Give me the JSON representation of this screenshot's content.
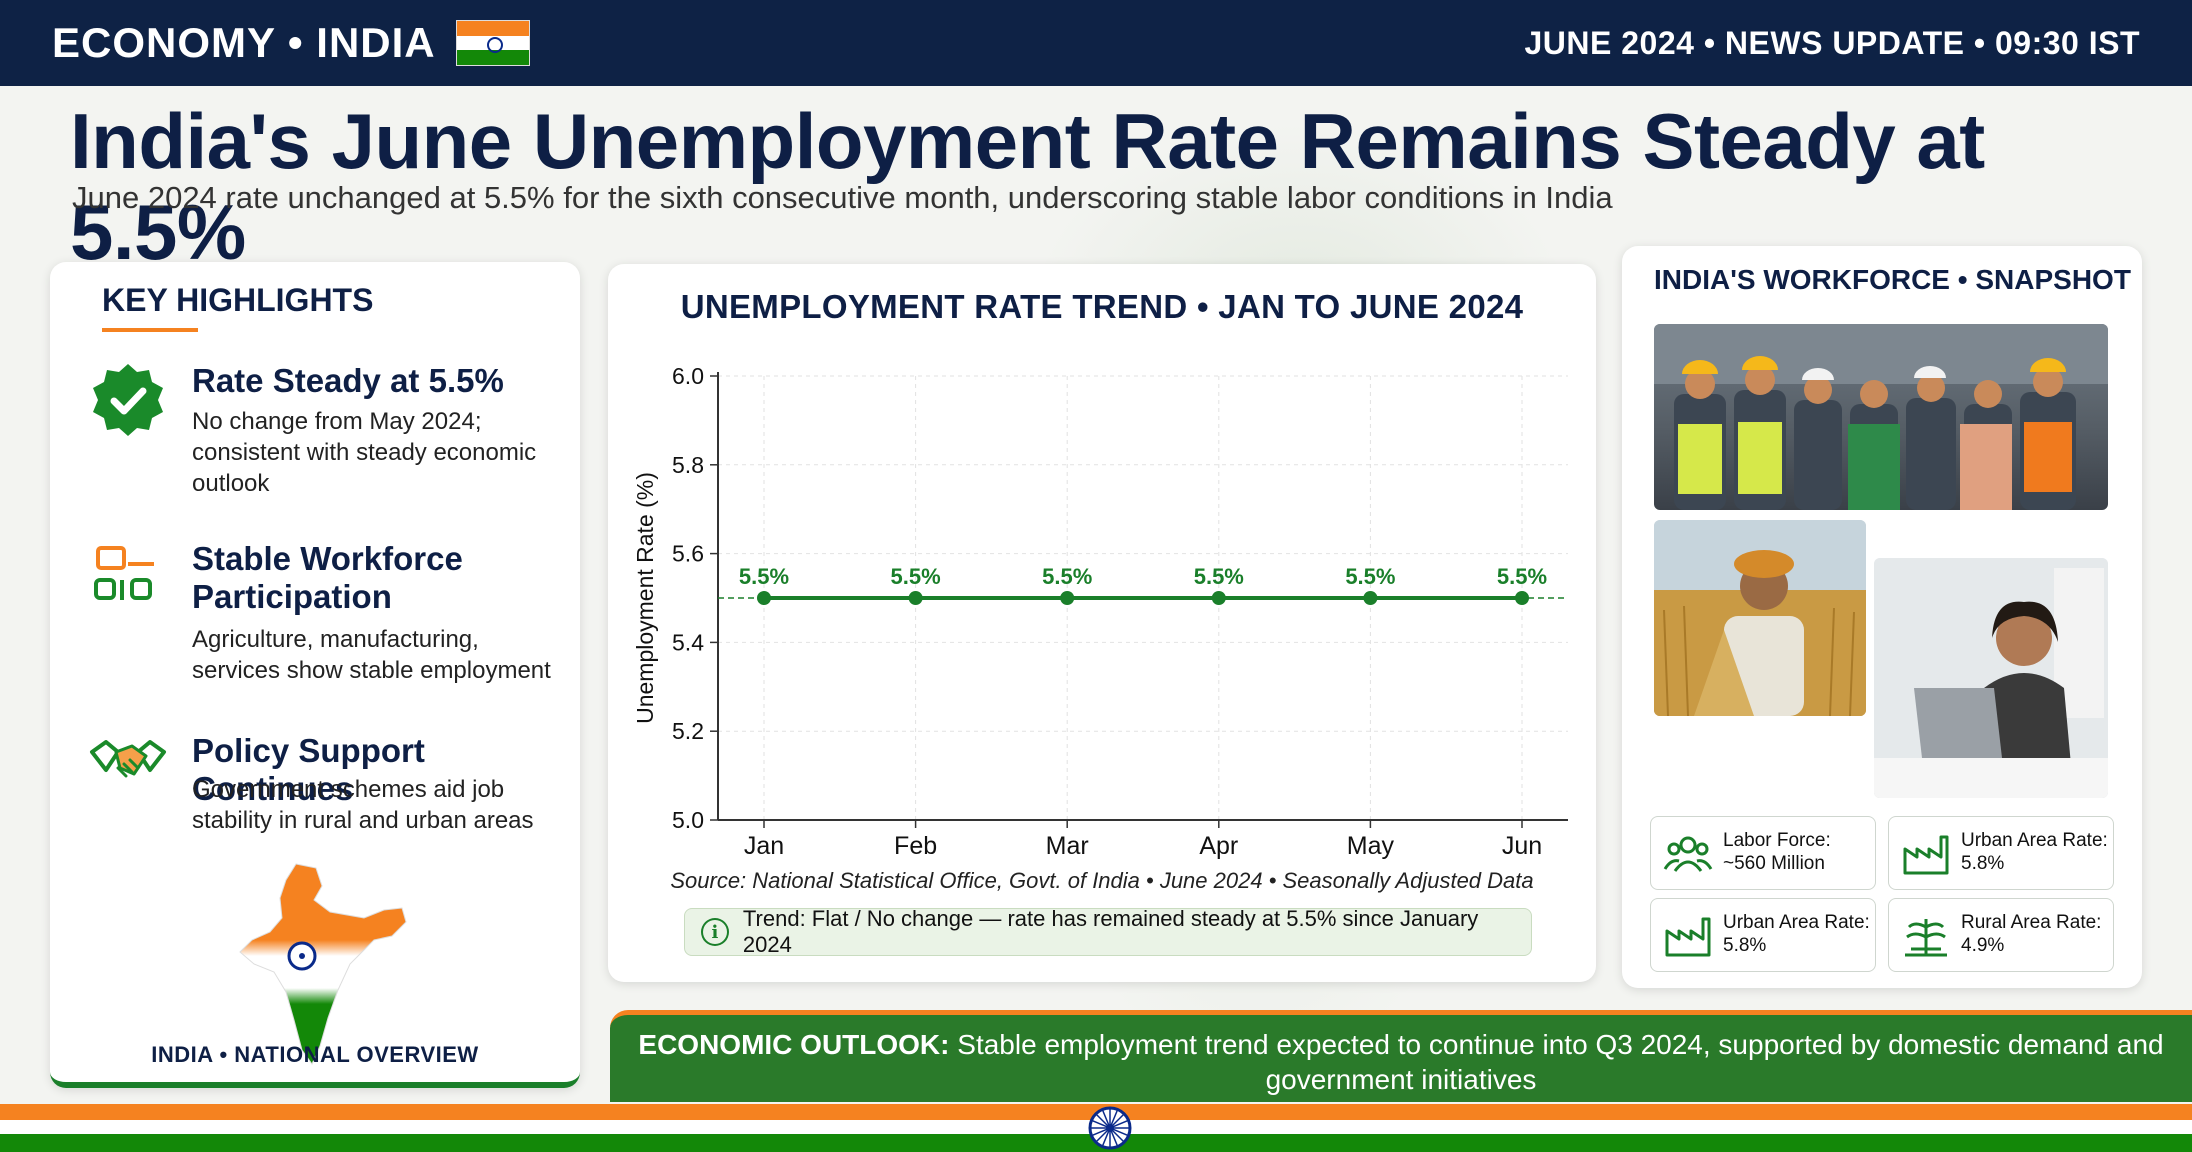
{
  "topbar": {
    "left_label": "ECONOMY • INDIA",
    "right_label": "JUNE 2024 • NEWS UPDATE • 09:30 IST"
  },
  "headline": "India's June Unemployment Rate Remains Steady at 5.5%",
  "subheadline": "June 2024 rate unchanged at 5.5% for the sixth consecutive month, underscoring stable labor conditions in India",
  "key_highlights": {
    "title": "KEY HIGHLIGHTS",
    "items": [
      {
        "icon": "check-badge-icon",
        "title": "Rate Steady at 5.5%",
        "description": "No change from May 2024; consistent with steady economic outlook"
      },
      {
        "icon": "workforce-icon",
        "title": "Stable Workforce Participation",
        "description": "Agriculture, manufacturing, services show stable employment"
      },
      {
        "icon": "handshake-icon",
        "title": "Policy Support Continues",
        "description": "Government schemes aid job stability in rural and urban areas"
      }
    ],
    "map_caption": "INDIA • NATIONAL OVERVIEW"
  },
  "chart_data": {
    "type": "line",
    "title": "UNEMPLOYMENT RATE TREND • JAN TO JUNE 2024",
    "xlabel": "",
    "ylabel": "Unemployment Rate (%)",
    "categories": [
      "Jan",
      "Feb",
      "Mar",
      "Apr",
      "May",
      "Jun"
    ],
    "values": [
      5.5,
      5.5,
      5.5,
      5.5,
      5.5,
      5.5
    ],
    "data_labels": [
      "5.5%",
      "5.5%",
      "5.5%",
      "5.5%",
      "5.5%",
      "5.5%"
    ],
    "ylim": [
      5.0,
      6.0
    ],
    "yticks": [
      "5.0",
      "5.2",
      "5.4",
      "5.6",
      "5.8",
      "6.0"
    ],
    "reference_line": 5.5,
    "grid": true,
    "line_color": "#1a7f2a"
  },
  "chart_footer": {
    "source": "Source: National Statistical Office, Govt. of India • June 2024 • Seasonally Adjusted Data",
    "trend": "Trend: Flat / No change — rate has remained steady at 5.5% since January 2024"
  },
  "workforce": {
    "title": "INDIA'S WORKFORCE • SNAPSHOT",
    "stats": [
      {
        "icon": "people-icon",
        "line1": "Labor Force:",
        "line2": "~560 Million"
      },
      {
        "icon": "factory-icon",
        "line1": "Urban Area Rate:",
        "line2": "5.8%"
      },
      {
        "icon": "factory-icon",
        "line1": "Urban Area Rate:",
        "line2": "5.8%"
      },
      {
        "icon": "crop-icon",
        "line1": "Rural Area Rate:",
        "line2": "4.9%"
      }
    ]
  },
  "outlook": {
    "label": "ECONOMIC OUTLOOK:",
    "text": "Stable employment trend expected to continue into Q3 2024, supported by domestic demand and government initiatives"
  },
  "colors": {
    "navy": "#0e2245",
    "saffron": "#f58220",
    "green": "#1a7f2a"
  }
}
